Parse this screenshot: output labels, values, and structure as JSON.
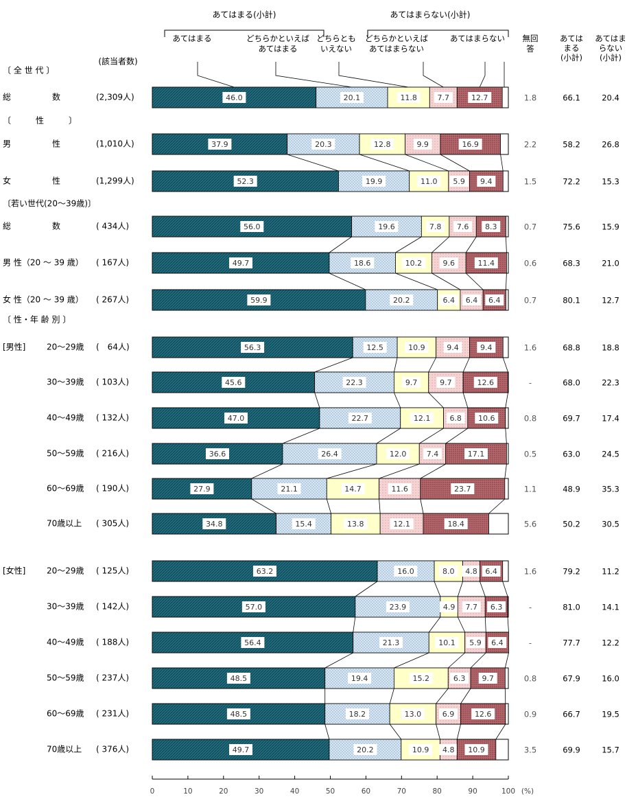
{
  "chart_data": {
    "type": "bar",
    "stacked": true,
    "orientation": "horizontal",
    "xlim": [
      0,
      100
    ],
    "x_ticks": [
      "0",
      "10",
      "20",
      "30",
      "40",
      "50",
      "60",
      "70",
      "80",
      "90",
      "100"
    ],
    "x_unit": "(%)",
    "count_header": "(該当者数)",
    "group_header_agree": "あてはまる(小計)",
    "group_header_disagree": "あてはまらない(小計)",
    "series": [
      {
        "name": "あてはまる",
        "color": "#1f6a7c"
      },
      {
        "name": "どちらかといえば\nあてはまる",
        "color": "#d6e6f2"
      },
      {
        "name": "どちらとも\nいえない",
        "color": "#ffffc9"
      },
      {
        "name": "どちらかといえば\nあてはまらない",
        "color": "#f6d3d3"
      },
      {
        "name": "あてはまらない",
        "color": "#b3686d"
      }
    ],
    "no_answer_header": "無回\n答",
    "subtotal_headers": [
      "あては\nまる\n(小計)",
      "あてはま\nらない\n(小計)"
    ],
    "sections": [
      {
        "title": "〔 全 世 代 〕",
        "rows": [
          {
            "label": "総　　　　　数",
            "count": "(2,309人)",
            "values": [
              46.0,
              20.1,
              11.8,
              7.7,
              12.7
            ],
            "labels": [
              "46.0",
              "20.1",
              "11.8",
              "7.7",
              "12.7"
            ],
            "no_answer": "1.8",
            "agree": "66.1",
            "disagree": "20.4"
          }
        ]
      },
      {
        "title": "〔　　　性　　　〕",
        "rows": [
          {
            "label": "男　　　　　性",
            "count": "(1,010人)",
            "values": [
              37.9,
              20.3,
              12.8,
              9.9,
              16.9
            ],
            "labels": [
              "37.9",
              "20.3",
              "12.8",
              "9.9",
              "16.9"
            ],
            "no_answer": "2.2",
            "agree": "58.2",
            "disagree": "26.8"
          },
          {
            "label": "女　　　　　性",
            "count": "(1,299人)",
            "values": [
              52.3,
              19.9,
              11.0,
              5.9,
              9.4
            ],
            "labels": [
              "52.3",
              "19.9",
              "11.0",
              "5.9",
              "9.4"
            ],
            "no_answer": "1.5",
            "agree": "72.2",
            "disagree": "15.3"
          }
        ]
      },
      {
        "title": "〔若い世代(20～39歳)〕",
        "rows": [
          {
            "label": "総　　　　　数",
            "count": "( 434人)",
            "values": [
              56.0,
              19.6,
              7.8,
              7.6,
              8.3
            ],
            "labels": [
              "56.0",
              "19.6",
              "7.8",
              "7.6",
              "8.3"
            ],
            "no_answer": "0.7",
            "agree": "75.6",
            "disagree": "15.9"
          },
          {
            "label": "男 性（20 ～ 39 歳）",
            "count": "( 167人)",
            "values": [
              49.7,
              18.6,
              10.2,
              9.6,
              11.4
            ],
            "labels": [
              "49.7",
              "18.6",
              "10.2",
              "9.6",
              "11.4"
            ],
            "no_answer": "0.6",
            "agree": "68.3",
            "disagree": "21.0"
          },
          {
            "label": "女 性（20 ～ 39 歳）",
            "count": "( 267人)",
            "values": [
              59.9,
              20.2,
              6.4,
              6.4,
              6.4
            ],
            "labels": [
              "59.9",
              "20.2",
              "6.4",
              "6.4",
              "6.4"
            ],
            "no_answer": "0.7",
            "agree": "80.1",
            "disagree": "12.7"
          }
        ]
      },
      {
        "title": "〔 性・年 齢 別 〕",
        "rows": [
          {
            "group": "[男性]",
            "label": "20～29歳",
            "count": "(　64人)",
            "values": [
              56.3,
              12.5,
              10.9,
              9.4,
              9.4
            ],
            "labels": [
              "56.3",
              "12.5",
              "10.9",
              "9.4",
              "9.4"
            ],
            "no_answer": "1.6",
            "agree": "68.8",
            "disagree": "18.8"
          },
          {
            "label": "30～39歳",
            "count": "( 103人)",
            "values": [
              45.6,
              22.3,
              9.7,
              9.7,
              12.6
            ],
            "labels": [
              "45.6",
              "22.3",
              "9.7",
              "9.7",
              "12.6"
            ],
            "no_answer": "-",
            "agree": "68.0",
            "disagree": "22.3"
          },
          {
            "label": "40～49歳",
            "count": "( 132人)",
            "values": [
              47.0,
              22.7,
              12.1,
              6.8,
              10.6
            ],
            "labels": [
              "47.0",
              "22.7",
              "12.1",
              "6.8",
              "10.6"
            ],
            "no_answer": "0.8",
            "agree": "69.7",
            "disagree": "17.4"
          },
          {
            "label": "50～59歳",
            "count": "( 216人)",
            "values": [
              36.6,
              26.4,
              12.0,
              7.4,
              17.1
            ],
            "labels": [
              "36.6",
              "26.4",
              "12.0",
              "7.4",
              "17.1"
            ],
            "no_answer": "0.5",
            "agree": "63.0",
            "disagree": "24.5"
          },
          {
            "label": "60～69歳",
            "count": "( 190人)",
            "values": [
              27.9,
              21.1,
              14.7,
              11.6,
              23.7
            ],
            "labels": [
              "27.9",
              "21.1",
              "14.7",
              "11.6",
              "23.7"
            ],
            "no_answer": "1.1",
            "agree": "48.9",
            "disagree": "35.3"
          },
          {
            "label": "70歳以上",
            "count": "( 305人)",
            "values": [
              34.8,
              15.4,
              13.8,
              12.1,
              18.4
            ],
            "labels": [
              "34.8",
              "15.4",
              "13.8",
              "12.1",
              "18.4"
            ],
            "no_answer": "5.6",
            "agree": "50.2",
            "disagree": "30.5"
          },
          {
            "group": "[女性]",
            "label": "20～29歳",
            "count": "( 125人)",
            "values": [
              63.2,
              16.0,
              8.0,
              4.8,
              6.4
            ],
            "labels": [
              "63.2",
              "16.0",
              "8.0",
              "4.8",
              "6.4"
            ],
            "no_answer": "1.6",
            "agree": "79.2",
            "disagree": "11.2"
          },
          {
            "label": "30～39歳",
            "count": "( 142人)",
            "values": [
              57.0,
              23.9,
              4.9,
              7.7,
              6.3
            ],
            "labels": [
              "57.0",
              "23.9",
              "4.9",
              "7.7",
              "6.3"
            ],
            "no_answer": "-",
            "agree": "81.0",
            "disagree": "14.1"
          },
          {
            "label": "40～49歳",
            "count": "( 188人)",
            "values": [
              56.4,
              21.3,
              10.1,
              5.9,
              6.4
            ],
            "labels": [
              "56.4",
              "21.3",
              "10.1",
              "5.9",
              "6.4"
            ],
            "no_answer": "-",
            "agree": "77.7",
            "disagree": "12.2"
          },
          {
            "label": "50～59歳",
            "count": "( 237人)",
            "values": [
              48.5,
              19.4,
              15.2,
              6.3,
              9.7
            ],
            "labels": [
              "48.5",
              "19.4",
              "15.2",
              "6.3",
              "9.7"
            ],
            "no_answer": "0.8",
            "agree": "67.9",
            "disagree": "16.0"
          },
          {
            "label": "60～69歳",
            "count": "( 231人)",
            "values": [
              48.5,
              18.2,
              13.0,
              6.9,
              12.6
            ],
            "labels": [
              "48.5",
              "18.2",
              "13.0",
              "6.9",
              "12.6"
            ],
            "no_answer": "0.9",
            "agree": "66.7",
            "disagree": "19.5"
          },
          {
            "label": "70歳以上",
            "count": "( 376人)",
            "values": [
              49.7,
              20.2,
              10.9,
              4.8,
              10.9
            ],
            "labels": [
              "49.7",
              "20.2",
              "10.9",
              "4.8",
              "10.9"
            ],
            "no_answer": "3.5",
            "agree": "69.9",
            "disagree": "15.7"
          }
        ]
      }
    ]
  }
}
